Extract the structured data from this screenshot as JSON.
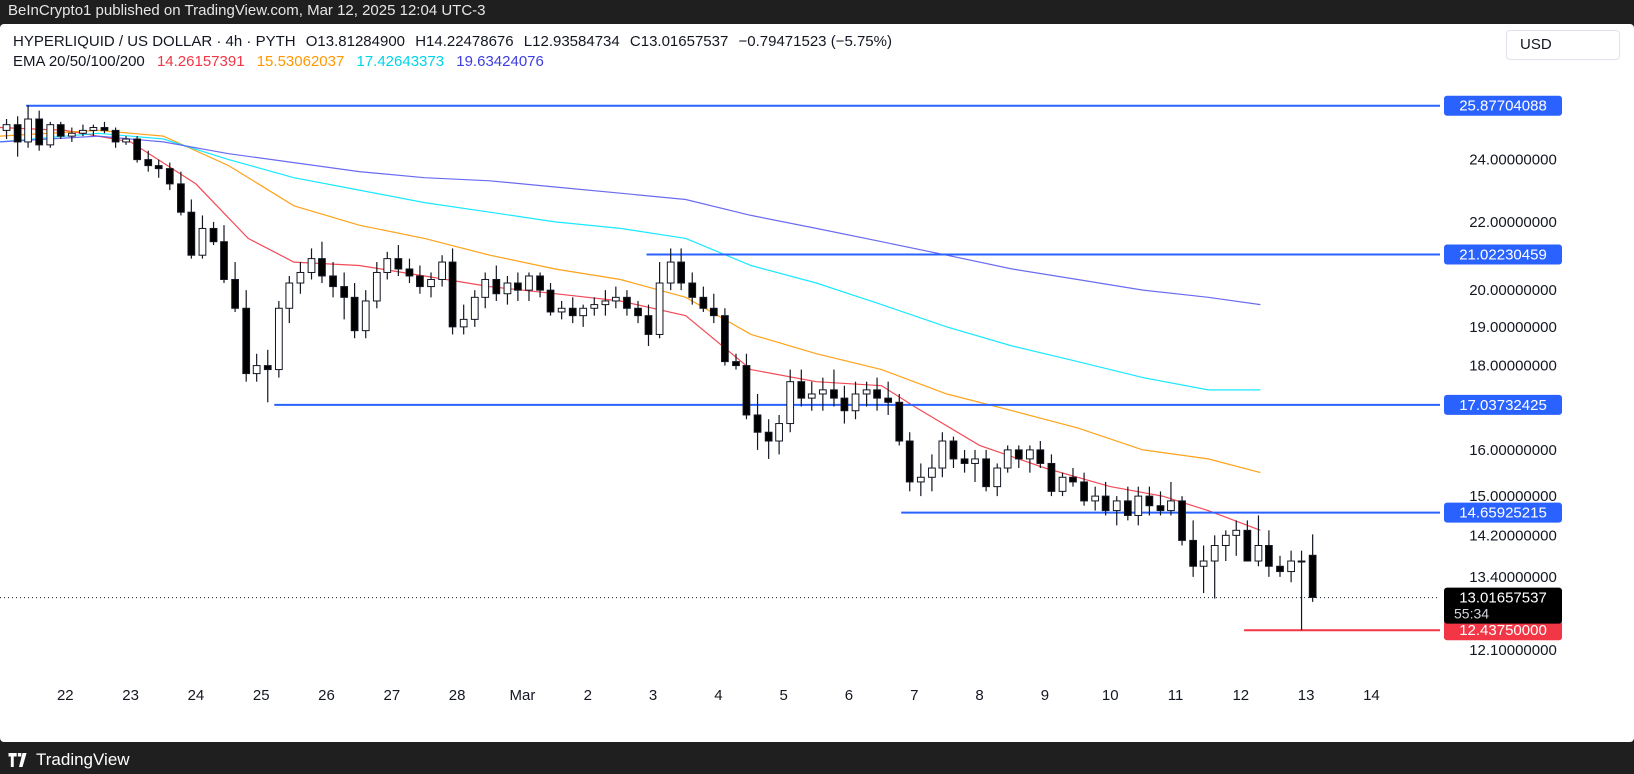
{
  "header": {
    "published": "BeInCrypto1 published on TradingView.com, Mar 12, 2025 12:04 UTC-3"
  },
  "footer": {
    "brand": "TradingView"
  },
  "symbol": {
    "title": "HYPERLIQUID / US DOLLAR · 4h · PYTH",
    "open": "O13.81284900",
    "high": "H14.22478676",
    "low": "L12.93584734",
    "close": "C13.01657537",
    "change": "−0.79471523 (−5.75%)"
  },
  "ema_legend": {
    "label": "EMA 20/50/100/200",
    "ema20": "14.26157391",
    "ema50": "15.53062037",
    "ema100": "17.42643373",
    "ema200": "19.63424076"
  },
  "currency_button": "USD",
  "colors": {
    "up": "#ffffff",
    "down": "#000000",
    "level_line": "#2962ff",
    "ema20": "#f23645",
    "ema50": "#ff9800",
    "ema100": "#00e5ff",
    "ema200": "#5b5bf0",
    "low_level": "#f23645"
  },
  "chart_data": {
    "type": "candlestick",
    "log_scale": true,
    "ylim": [
      11.7,
      27.2
    ],
    "y_ticks": [
      {
        "value": 24.0,
        "label": "24.00000000"
      },
      {
        "value": 22.0,
        "label": "22.00000000"
      },
      {
        "value": 20.0,
        "label": "20.00000000"
      },
      {
        "value": 19.0,
        "label": "19.00000000"
      },
      {
        "value": 18.0,
        "label": "18.00000000"
      },
      {
        "value": 16.0,
        "label": "16.00000000"
      },
      {
        "value": 15.0,
        "label": "15.00000000"
      },
      {
        "value": 14.2,
        "label": "14.20000000"
      },
      {
        "value": 13.4,
        "label": "13.40000000"
      },
      {
        "value": 12.1,
        "label": "12.10000000"
      }
    ],
    "x_ticks": [
      {
        "day": 22,
        "label": "22"
      },
      {
        "day": 23,
        "label": "23"
      },
      {
        "day": 24,
        "label": "24"
      },
      {
        "day": 25,
        "label": "25"
      },
      {
        "day": 26,
        "label": "26"
      },
      {
        "day": 27,
        "label": "27"
      },
      {
        "day": 28,
        "label": "28"
      },
      {
        "day": 29,
        "label": "Mar"
      },
      {
        "day": 30,
        "label": "2"
      },
      {
        "day": 31,
        "label": "3"
      },
      {
        "day": 32,
        "label": "4"
      },
      {
        "day": 33,
        "label": "5"
      },
      {
        "day": 34,
        "label": "6"
      },
      {
        "day": 35,
        "label": "7"
      },
      {
        "day": 36,
        "label": "8"
      },
      {
        "day": 37,
        "label": "9"
      },
      {
        "day": 38,
        "label": "10"
      },
      {
        "day": 39,
        "label": "11"
      },
      {
        "day": 40,
        "label": "12"
      },
      {
        "day": 41,
        "label": "13"
      },
      {
        "day": 42,
        "label": "14"
      }
    ],
    "x_range": [
      21.0,
      43.05
    ],
    "levels": [
      {
        "value": 25.87704088,
        "label": "25.87704088",
        "from_day": 21.4
      },
      {
        "value": 21.02230459,
        "label": "21.02230459",
        "from_day": 30.9
      },
      {
        "value": 17.03732425,
        "label": "17.03732425",
        "from_day": 25.2
      },
      {
        "value": 14.65925215,
        "label": "14.65925215",
        "from_day": 34.8
      }
    ],
    "low_level": {
      "value": 12.4375,
      "label": "12.43750000",
      "from_day": 40.05
    },
    "current_price": {
      "value": 13.01657537,
      "label": "13.01657537",
      "countdown": "55:34"
    },
    "ema_series": [
      {
        "name": "EMA 20",
        "points": [
          [
            21.0,
            25.1
          ],
          [
            22.0,
            25.0
          ],
          [
            23.0,
            24.6
          ],
          [
            24.0,
            23.2
          ],
          [
            24.8,
            21.5
          ],
          [
            25.5,
            20.8
          ],
          [
            26.5,
            20.7
          ],
          [
            27.5,
            20.4
          ],
          [
            28.5,
            20.1
          ],
          [
            29.5,
            19.9
          ],
          [
            30.5,
            19.7
          ],
          [
            31.5,
            19.3
          ],
          [
            32.5,
            17.9
          ],
          [
            33.5,
            17.6
          ],
          [
            34.5,
            17.5
          ],
          [
            35.0,
            17.0
          ],
          [
            36.0,
            16.1
          ],
          [
            37.0,
            15.6
          ],
          [
            38.0,
            15.2
          ],
          [
            38.8,
            15.0
          ],
          [
            39.5,
            14.7
          ],
          [
            40.3,
            14.3
          ]
        ]
      },
      {
        "name": "EMA 50",
        "points": [
          [
            21.0,
            24.8
          ],
          [
            22.5,
            25.0
          ],
          [
            23.5,
            24.8
          ],
          [
            24.5,
            23.8
          ],
          [
            25.5,
            22.5
          ],
          [
            26.5,
            21.9
          ],
          [
            27.5,
            21.5
          ],
          [
            28.5,
            21.0
          ],
          [
            29.5,
            20.6
          ],
          [
            30.5,
            20.3
          ],
          [
            31.5,
            19.8
          ],
          [
            32.5,
            18.8
          ],
          [
            33.5,
            18.3
          ],
          [
            34.5,
            17.9
          ],
          [
            35.5,
            17.3
          ],
          [
            36.5,
            16.9
          ],
          [
            37.5,
            16.5
          ],
          [
            38.5,
            16.0
          ],
          [
            39.5,
            15.8
          ],
          [
            40.3,
            15.5
          ]
        ]
      },
      {
        "name": "EMA 100",
        "points": [
          [
            21.0,
            24.6
          ],
          [
            22.5,
            24.9
          ],
          [
            23.5,
            24.7
          ],
          [
            24.5,
            24.0
          ],
          [
            25.5,
            23.4
          ],
          [
            26.5,
            23.0
          ],
          [
            27.5,
            22.6
          ],
          [
            28.5,
            22.3
          ],
          [
            29.5,
            22.0
          ],
          [
            30.5,
            21.8
          ],
          [
            31.5,
            21.5
          ],
          [
            32.5,
            20.7
          ],
          [
            33.5,
            20.2
          ],
          [
            34.5,
            19.6
          ],
          [
            35.5,
            19.0
          ],
          [
            36.5,
            18.5
          ],
          [
            37.5,
            18.1
          ],
          [
            38.5,
            17.7
          ],
          [
            39.5,
            17.4
          ],
          [
            40.3,
            17.4
          ]
        ]
      },
      {
        "name": "EMA 200",
        "points": [
          [
            21.0,
            24.6
          ],
          [
            22.5,
            24.8
          ],
          [
            23.5,
            24.6
          ],
          [
            24.5,
            24.2
          ],
          [
            25.5,
            23.9
          ],
          [
            26.5,
            23.6
          ],
          [
            27.5,
            23.4
          ],
          [
            28.5,
            23.3
          ],
          [
            29.5,
            23.1
          ],
          [
            30.5,
            22.9
          ],
          [
            31.5,
            22.7
          ],
          [
            32.5,
            22.2
          ],
          [
            33.5,
            21.8
          ],
          [
            34.5,
            21.4
          ],
          [
            35.5,
            21.0
          ],
          [
            36.5,
            20.6
          ],
          [
            37.5,
            20.3
          ],
          [
            38.5,
            20.0
          ],
          [
            39.5,
            19.8
          ],
          [
            40.3,
            19.6
          ]
        ]
      }
    ],
    "candles": [
      [
        21.1,
        25.0,
        25.4,
        24.7,
        25.2
      ],
      [
        21.27,
        25.2,
        25.5,
        24.1,
        24.6
      ],
      [
        21.43,
        24.6,
        25.9,
        24.4,
        25.4
      ],
      [
        21.6,
        25.4,
        25.7,
        24.3,
        24.5
      ],
      [
        21.77,
        24.5,
        25.3,
        24.4,
        25.2
      ],
      [
        21.93,
        25.2,
        25.3,
        24.7,
        24.8
      ],
      [
        22.1,
        24.8,
        25.1,
        24.6,
        24.9
      ],
      [
        22.27,
        24.9,
        25.2,
        24.8,
        25.0
      ],
      [
        22.43,
        25.0,
        25.2,
        24.8,
        25.1
      ],
      [
        22.6,
        25.1,
        25.3,
        24.9,
        25.0
      ],
      [
        22.77,
        25.0,
        25.1,
        24.4,
        24.6
      ],
      [
        22.93,
        24.6,
        24.8,
        24.5,
        24.7
      ],
      [
        23.1,
        24.7,
        24.8,
        23.9,
        24.0
      ],
      [
        23.27,
        24.0,
        24.3,
        23.6,
        23.8
      ],
      [
        23.43,
        23.8,
        24.0,
        23.4,
        23.7
      ],
      [
        23.6,
        23.7,
        23.9,
        23.0,
        23.2
      ],
      [
        23.77,
        23.2,
        23.6,
        22.2,
        22.3
      ],
      [
        23.93,
        22.3,
        22.7,
        20.9,
        21.0
      ],
      [
        24.1,
        21.0,
        22.2,
        20.9,
        21.8
      ],
      [
        24.27,
        21.8,
        22.0,
        21.3,
        21.4
      ],
      [
        24.43,
        21.4,
        21.9,
        20.2,
        20.3
      ],
      [
        24.6,
        20.3,
        20.8,
        19.4,
        19.5
      ],
      [
        24.77,
        19.5,
        20.0,
        17.6,
        17.8
      ],
      [
        24.93,
        17.8,
        18.3,
        17.6,
        18.0
      ],
      [
        25.1,
        18.0,
        18.4,
        17.1,
        17.9
      ],
      [
        25.27,
        17.9,
        19.7,
        17.7,
        19.5
      ],
      [
        25.43,
        19.5,
        20.4,
        19.1,
        20.2
      ],
      [
        25.6,
        20.2,
        20.8,
        19.9,
        20.5
      ],
      [
        25.77,
        20.5,
        21.2,
        20.3,
        20.9
      ],
      [
        25.93,
        20.9,
        21.4,
        20.2,
        20.4
      ],
      [
        26.1,
        20.4,
        20.8,
        19.8,
        20.1
      ],
      [
        26.27,
        20.1,
        20.5,
        19.2,
        19.8
      ],
      [
        26.43,
        19.8,
        20.2,
        18.7,
        18.9
      ],
      [
        26.6,
        18.9,
        20.0,
        18.7,
        19.7
      ],
      [
        26.77,
        19.7,
        20.8,
        19.5,
        20.5
      ],
      [
        26.93,
        20.5,
        21.1,
        20.3,
        20.9
      ],
      [
        27.1,
        20.9,
        21.3,
        20.4,
        20.6
      ],
      [
        27.27,
        20.6,
        20.9,
        20.2,
        20.4
      ],
      [
        27.43,
        20.4,
        20.7,
        19.9,
        20.1
      ],
      [
        27.6,
        20.1,
        20.5,
        19.8,
        20.3
      ],
      [
        27.77,
        20.3,
        21.0,
        20.1,
        20.8
      ],
      [
        27.93,
        20.8,
        21.2,
        18.8,
        19.0
      ],
      [
        28.1,
        19.0,
        19.6,
        18.8,
        19.2
      ],
      [
        28.27,
        19.2,
        20.0,
        19.0,
        19.8
      ],
      [
        28.43,
        19.8,
        20.5,
        19.5,
        20.3
      ],
      [
        28.6,
        20.3,
        20.7,
        19.7,
        19.9
      ],
      [
        28.77,
        19.9,
        20.4,
        19.6,
        20.2
      ],
      [
        28.93,
        20.2,
        20.5,
        19.7,
        20.0
      ],
      [
        29.1,
        20.0,
        20.5,
        19.7,
        20.4
      ],
      [
        29.27,
        20.4,
        20.5,
        19.8,
        20.0
      ],
      [
        29.43,
        20.0,
        20.2,
        19.3,
        19.4
      ],
      [
        29.6,
        19.4,
        19.7,
        19.2,
        19.5
      ],
      [
        29.77,
        19.5,
        19.8,
        19.1,
        19.3
      ],
      [
        29.93,
        19.3,
        19.6,
        19.0,
        19.5
      ],
      [
        30.1,
        19.5,
        19.8,
        19.3,
        19.6
      ],
      [
        30.27,
        19.6,
        20.0,
        19.3,
        19.7
      ],
      [
        30.43,
        19.7,
        20.1,
        19.5,
        19.8
      ],
      [
        30.6,
        19.8,
        20.0,
        19.3,
        19.5
      ],
      [
        30.77,
        19.5,
        19.7,
        19.1,
        19.3
      ],
      [
        30.93,
        19.3,
        19.6,
        18.5,
        18.8
      ],
      [
        31.1,
        18.8,
        20.8,
        18.7,
        20.2
      ],
      [
        31.27,
        20.2,
        21.2,
        20.0,
        20.8
      ],
      [
        31.43,
        20.8,
        21.2,
        20.0,
        20.2
      ],
      [
        31.6,
        20.2,
        20.5,
        19.6,
        19.8
      ],
      [
        31.77,
        19.8,
        20.1,
        19.4,
        19.5
      ],
      [
        31.93,
        19.5,
        19.9,
        19.1,
        19.3
      ],
      [
        32.1,
        19.3,
        19.5,
        18.0,
        18.1
      ],
      [
        32.27,
        18.1,
        18.3,
        17.9,
        18.0
      ],
      [
        32.43,
        18.0,
        18.3,
        16.7,
        16.8
      ],
      [
        32.6,
        16.8,
        17.3,
        16.0,
        16.4
      ],
      [
        32.77,
        16.4,
        16.7,
        15.8,
        16.2
      ],
      [
        32.93,
        16.2,
        16.8,
        15.9,
        16.6
      ],
      [
        33.1,
        16.6,
        17.9,
        16.4,
        17.6
      ],
      [
        33.27,
        17.6,
        17.9,
        17.0,
        17.2
      ],
      [
        33.43,
        17.2,
        17.6,
        16.9,
        17.3
      ],
      [
        33.6,
        17.3,
        17.7,
        16.9,
        17.4
      ],
      [
        33.77,
        17.4,
        17.9,
        17.0,
        17.2
      ],
      [
        33.93,
        17.2,
        17.5,
        16.6,
        16.9
      ],
      [
        34.1,
        16.9,
        17.6,
        16.7,
        17.3
      ],
      [
        34.27,
        17.3,
        17.6,
        17.0,
        17.4
      ],
      [
        34.43,
        17.4,
        17.7,
        16.9,
        17.2
      ],
      [
        34.6,
        17.2,
        17.6,
        16.8,
        17.1
      ],
      [
        34.77,
        17.1,
        17.3,
        16.1,
        16.2
      ],
      [
        34.93,
        16.2,
        16.4,
        15.1,
        15.3
      ],
      [
        35.1,
        15.3,
        15.7,
        15.0,
        15.4
      ],
      [
        35.27,
        15.4,
        15.9,
        15.1,
        15.6
      ],
      [
        35.43,
        15.6,
        16.4,
        15.4,
        16.2
      ],
      [
        35.6,
        16.2,
        16.3,
        15.6,
        15.8
      ],
      [
        35.77,
        15.8,
        16.0,
        15.5,
        15.7
      ],
      [
        35.93,
        15.7,
        16.0,
        15.3,
        15.8
      ],
      [
        36.1,
        15.8,
        16.0,
        15.1,
        15.2
      ],
      [
        36.27,
        15.2,
        15.7,
        15.0,
        15.6
      ],
      [
        36.43,
        15.6,
        16.1,
        15.5,
        16.0
      ],
      [
        36.6,
        16.0,
        16.1,
        15.6,
        15.8
      ],
      [
        36.77,
        15.8,
        16.1,
        15.5,
        16.0
      ],
      [
        36.93,
        16.0,
        16.2,
        15.6,
        15.7
      ],
      [
        37.1,
        15.7,
        15.9,
        15.0,
        15.1
      ],
      [
        37.27,
        15.1,
        15.5,
        15.0,
        15.4
      ],
      [
        37.43,
        15.4,
        15.6,
        15.2,
        15.3
      ],
      [
        37.6,
        15.3,
        15.5,
        14.8,
        14.9
      ],
      [
        37.77,
        14.9,
        15.2,
        14.7,
        15.0
      ],
      [
        37.93,
        15.0,
        15.3,
        14.6,
        14.7
      ],
      [
        38.1,
        14.7,
        15.0,
        14.4,
        14.9
      ],
      [
        38.27,
        14.9,
        15.2,
        14.5,
        14.6
      ],
      [
        38.43,
        14.6,
        15.2,
        14.4,
        15.0
      ],
      [
        38.6,
        15.0,
        15.2,
        14.6,
        14.8
      ],
      [
        38.77,
        14.8,
        15.1,
        14.6,
        14.7
      ],
      [
        38.93,
        14.7,
        15.3,
        14.6,
        14.9
      ],
      [
        39.1,
        14.9,
        15.0,
        14.0,
        14.1
      ],
      [
        39.27,
        14.1,
        14.5,
        13.4,
        13.6
      ],
      [
        39.43,
        13.6,
        14.0,
        13.1,
        13.7
      ],
      [
        39.6,
        13.7,
        14.2,
        13.0,
        14.0
      ],
      [
        39.77,
        14.0,
        14.3,
        13.7,
        14.2
      ],
      [
        39.93,
        14.2,
        14.5,
        13.8,
        14.3
      ],
      [
        40.1,
        14.3,
        14.5,
        13.8,
        13.7
      ],
      [
        40.27,
        13.7,
        14.6,
        13.6,
        14.0
      ],
      [
        40.43,
        14.0,
        14.3,
        13.4,
        13.6
      ],
      [
        40.6,
        13.6,
        13.8,
        13.4,
        13.5
      ],
      [
        40.77,
        13.5,
        13.9,
        13.3,
        13.7
      ],
      [
        40.93,
        13.7,
        13.9,
        12.44,
        13.7
      ],
      [
        41.1,
        13.81,
        14.22,
        12.94,
        13.02
      ]
    ]
  }
}
